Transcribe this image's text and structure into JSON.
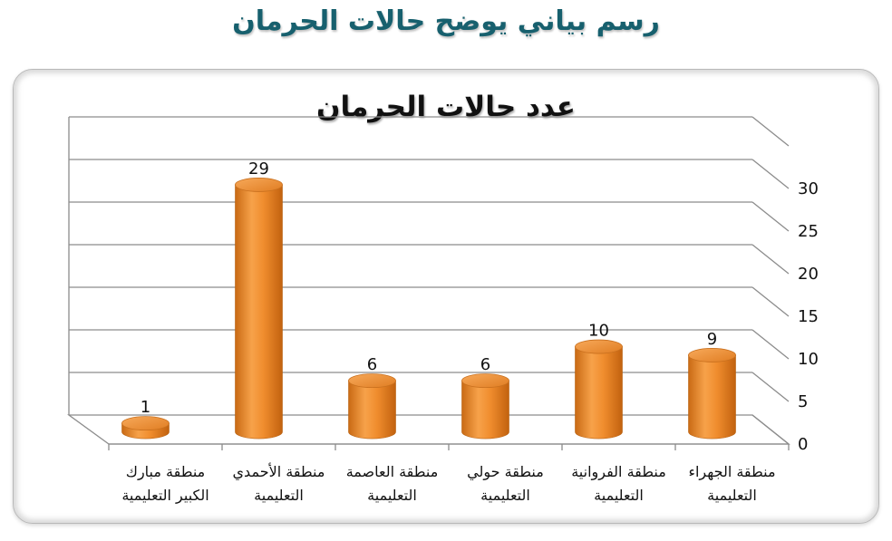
{
  "page": {
    "title": "رسم بياني يوضح حالات الحرمان"
  },
  "chart_data": {
    "type": "bar",
    "title": "عدد حالات الحرمان",
    "categories": [
      [
        "منطقة مبارك",
        "الكبير التعليمية"
      ],
      [
        "منطقة الأحمدي",
        "التعليمية"
      ],
      [
        "منطقة العاصمة",
        "التعليمية"
      ],
      [
        "منطقة حولي",
        "التعليمية"
      ],
      [
        "منطقة الفروانية",
        "التعليمية"
      ],
      [
        "منطقة الجهراء",
        "التعليمية"
      ]
    ],
    "values": [
      1,
      29,
      6,
      6,
      10,
      9
    ],
    "data_labels": [
      "1",
      "29",
      "6",
      "6",
      "10",
      "9"
    ],
    "ylim": [
      0,
      30
    ],
    "yticks": [
      0,
      5,
      10,
      15,
      20,
      25,
      30
    ],
    "ytick_labels": [
      "0",
      "5",
      "10",
      "15",
      "20",
      "25",
      "30"
    ],
    "y_axis_side": "right",
    "grid": true,
    "bar_shape": "cylinder-3d",
    "bar_color": "#f39a3f",
    "xlabel": "",
    "ylabel": ""
  }
}
